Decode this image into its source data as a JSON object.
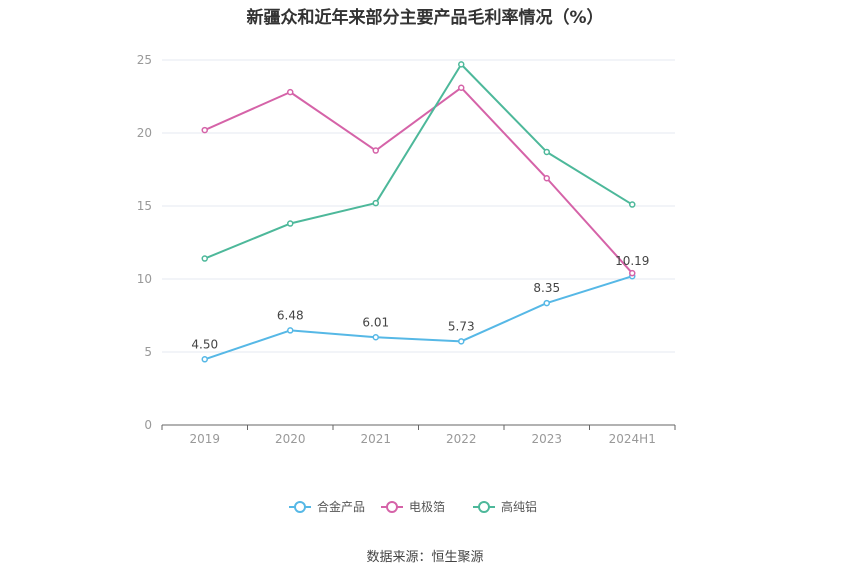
{
  "chart_data": {
    "type": "line",
    "title": "新疆众和近年来部分主要产品毛利率情况（%）",
    "categories": [
      "2019",
      "2020",
      "2021",
      "2022",
      "2023",
      "2024H1"
    ],
    "ylim": [
      0,
      25
    ],
    "yticks": [
      0,
      5,
      10,
      15,
      20,
      25
    ],
    "grid": true,
    "legend_position": "bottom",
    "series": [
      {
        "name": "合金产品",
        "color": "#56b8e6",
        "values": [
          4.5,
          6.48,
          6.01,
          5.73,
          8.35,
          10.19
        ],
        "labels": [
          "4.50",
          "6.48",
          "6.01",
          "5.73",
          "8.35",
          "10.19"
        ]
      },
      {
        "name": "电极箔",
        "color": "#d563a8",
        "values": [
          20.2,
          22.8,
          18.8,
          23.1,
          16.9,
          10.4
        ]
      },
      {
        "name": "高纯铝",
        "color": "#4db89a",
        "values": [
          11.4,
          13.8,
          15.2,
          24.7,
          18.7,
          15.1
        ]
      }
    ]
  },
  "source": "数据来源：恒生聚源"
}
